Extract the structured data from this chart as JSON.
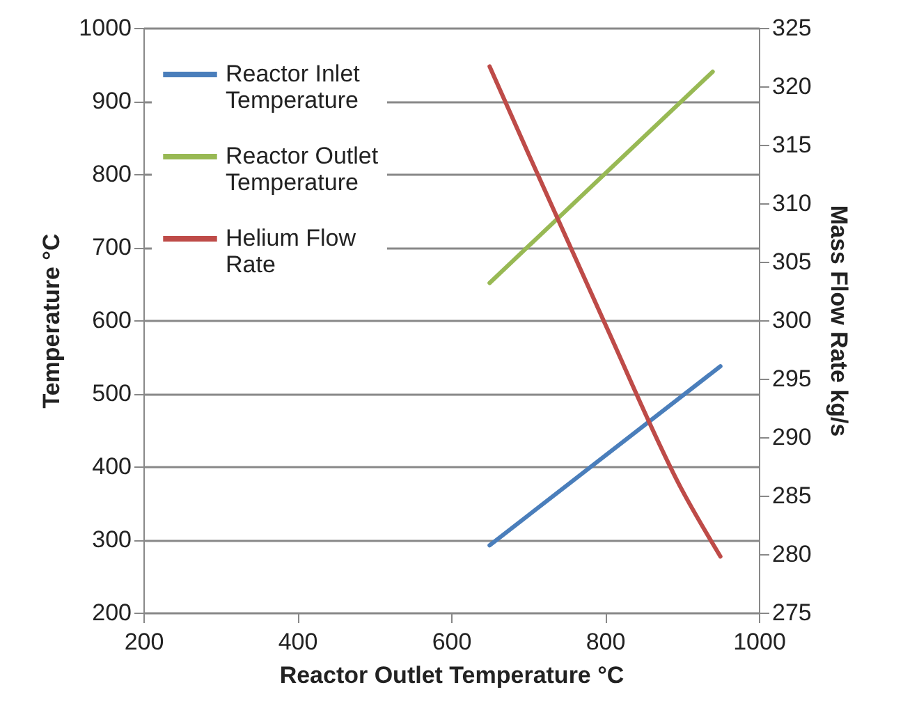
{
  "chart_data": {
    "type": "line",
    "xlabel": "Reactor Outlet Temperature °C",
    "ylabel": "Temperature °C",
    "y2label": "Mass Flow Rate kg/s",
    "series": [
      {
        "name": "Reactor Inlet Temperature",
        "color": "#4a7ebb",
        "x": [
          650,
          950
        ],
        "values": [
          292,
          537
        ]
      },
      {
        "name": "Reactor Outlet Temperature",
        "color": "#98b954",
        "x": [
          650,
          940
        ],
        "values": [
          651,
          940
        ]
      },
      {
        "name": "Helium Flow Rate",
        "color": "#be4b48",
        "axis": "y2",
        "x": [
          650,
          700,
          800,
          900,
          950
        ],
        "values": [
          321.7,
          314.3,
          299.7,
          285.5,
          279.8
        ]
      }
    ],
    "xlim": [
      200,
      1000
    ],
    "xticks": [
      200,
      400,
      600,
      800,
      1000
    ],
    "ylim": [
      200,
      1000
    ],
    "yticks": [
      200,
      300,
      400,
      500,
      600,
      700,
      800,
      900,
      1000
    ],
    "y2lim": [
      275,
      325
    ],
    "y2ticks": [
      275,
      280,
      285,
      290,
      295,
      300,
      305,
      310,
      315,
      320,
      325
    ],
    "grid": "y",
    "legend": "top left",
    "marker": "none",
    "line_style": "solid"
  }
}
